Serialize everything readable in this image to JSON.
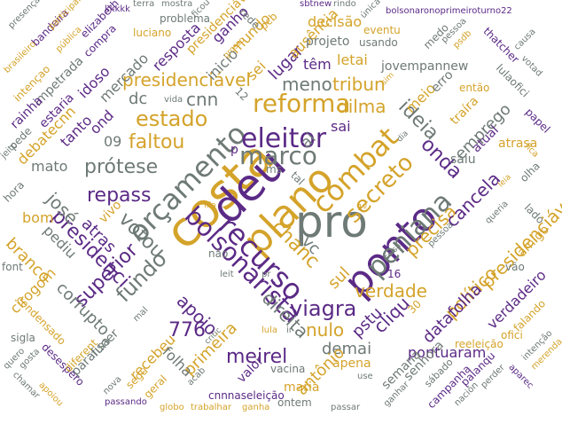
{
  "palette": {
    "purple": "#5b2a86",
    "gold": "#d4a32a",
    "gray": "#6e7a76"
  },
  "words": [
    "costa",
    "deu",
    "pro",
    "plano",
    "ponto",
    "orçamento",
    "combat",
    "recurso",
    "eleitor",
    "marco",
    "bolsonarista",
    "peniana",
    "secreto",
    "reforma",
    "estado",
    "viagra",
    "votou",
    "chanc",
    "fundo",
    "repass",
    "prótese",
    "faltou",
    "apoio",
    "presidenci",
    "superior",
    "precisa",
    "cancela",
    "presidenciável",
    "verdade",
    "cliqu",
    "onda",
    "ideia",
    "meirel",
    "direita",
    "776",
    "nulo",
    "político",
    "dilma",
    "tribun",
    "meno",
    "cnn",
    "presidenciável",
    "emprego",
    "pontuaram",
    "demai",
    "sul",
    "vc",
    "josé",
    "corrupto",
    "branco",
    "atras",
    "datafolha",
    "verdadeiro",
    "antônio",
    "pstu",
    "primeira",
    "recebeu",
    "folha",
    "pediu",
    "bom",
    "cirogom",
    "mato",
    "tanto",
    "ond",
    "debatecnn",
    "estaria",
    "idoso",
    "impetrada",
    "mercado",
    "resposta",
    "presidenciáv",
    "ganho",
    "lugar",
    "ausência",
    "mundo",
    "sei",
    "letai",
    "têm",
    "projeto",
    "decisão",
    "jovempannew",
    "usando",
    "meio",
    "erro",
    "saiu",
    "atual",
    "traíra",
    "atrasa",
    "amigo",
    "papel",
    "thatcher",
    "lulaofici",
    "reeleição",
    "senhora",
    "semana",
    "apena",
    "maria",
    "vacina",
    "valor",
    "funer",
    "paralisa",
    "condensado",
    "font",
    "sigla",
    "desespero",
    "diferent",
    "campanha",
    "palanqu",
    "ofici",
    "intenção",
    "sábado",
    "ontem",
    "passar",
    "cnnnaseleição",
    "ganha",
    "trabalhar",
    "globo",
    "geral",
    "passando",
    "acab",
    "segu",
    "nova",
    "apoiou",
    "chamar",
    "quero",
    "gosta",
    "luciano",
    "problema",
    "bandeira",
    "compra",
    "elizabeth",
    "kkkkk",
    "terra",
    "mostra",
    "rede",
    "pcb",
    "sbtnew",
    "rindo",
    "única",
    "bolsonaronoprimeiroturno22",
    "eventu",
    "medo",
    "pessoa",
    "psdb",
    "causa",
    "votad",
    "então",
    "jeito",
    "pede",
    "rainha",
    "intençao",
    "presença",
    "participar",
    "pública",
    "brasileiro",
    "vivo",
    "dc",
    "09",
    "ms",
    "sai",
    "tal",
    "ai",
    "p",
    "inicio",
    "vida",
    "não",
    "leit",
    "pr",
    "ir",
    "lula",
    "critic",
    "mal",
    "olha",
    "lado",
    "fica",
    "16",
    "30",
    "queria",
    "perder",
    "nación",
    "aparec",
    "falando",
    "merenda",
    "dia",
    "grosso",
    "ficou",
    "pessoa",
    "1º",
    "fila",
    "use",
    "ganhar",
    "12",
    "sim",
    "hora",
    "vão",
    "coisa",
    "leia"
  ]
}
